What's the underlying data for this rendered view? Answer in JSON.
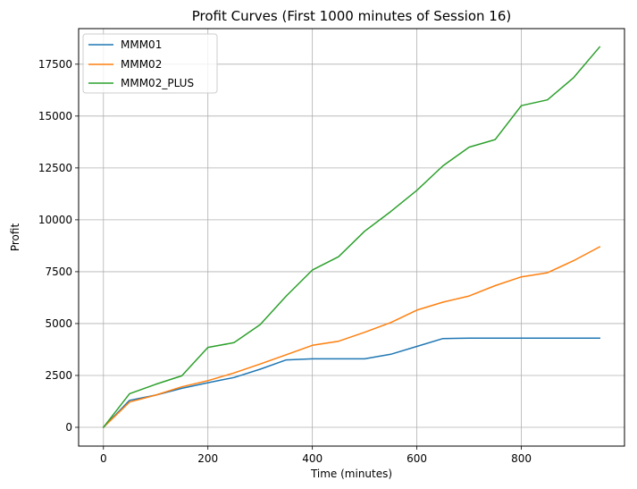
{
  "chart_data": {
    "type": "line",
    "title": "Profit Curves (First 1000 minutes of Session 16)",
    "xlabel": "Time (minutes)",
    "ylabel": "Profit",
    "xlim": [
      -47.5,
      997.5
    ],
    "ylim": [
      -905,
      19215
    ],
    "x_ticks": [
      0,
      200,
      400,
      600,
      800
    ],
    "x_tick_labels": [
      "0",
      "200",
      "400",
      "600",
      "800"
    ],
    "y_ticks": [
      0,
      2500,
      5000,
      7500,
      10000,
      12500,
      15000,
      17500
    ],
    "y_tick_labels": [
      "0",
      "2500",
      "5000",
      "7500",
      "10000",
      "12500",
      "15000",
      "17500"
    ],
    "grid": true,
    "legend_position": "top-left",
    "x": [
      0,
      50,
      100,
      150,
      200,
      250,
      300,
      350,
      400,
      450,
      500,
      550,
      600,
      650,
      700,
      750,
      800,
      850,
      900,
      950
    ],
    "series": [
      {
        "name": "MMM01",
        "color": "#1f77b4",
        "values": [
          0,
          1300,
          1550,
          1880,
          2150,
          2400,
          2800,
          3250,
          3300,
          3300,
          3300,
          3520,
          3900,
          4280,
          4300,
          4300,
          4300,
          4300,
          4300,
          4300
        ]
      },
      {
        "name": "MMM02",
        "color": "#ff7f0e",
        "values": [
          0,
          1220,
          1550,
          1950,
          2250,
          2620,
          3050,
          3500,
          3950,
          4150,
          4580,
          5050,
          5650,
          6030,
          6330,
          6830,
          7250,
          7450,
          8030,
          8700
        ]
      },
      {
        "name": "MMM02_PLUS",
        "color": "#2ca02c",
        "values": [
          0,
          1620,
          2070,
          2480,
          3850,
          4080,
          4950,
          6330,
          7580,
          8220,
          9450,
          10400,
          11420,
          12600,
          13500,
          13870,
          15500,
          15780,
          16850,
          18330
        ]
      }
    ]
  }
}
